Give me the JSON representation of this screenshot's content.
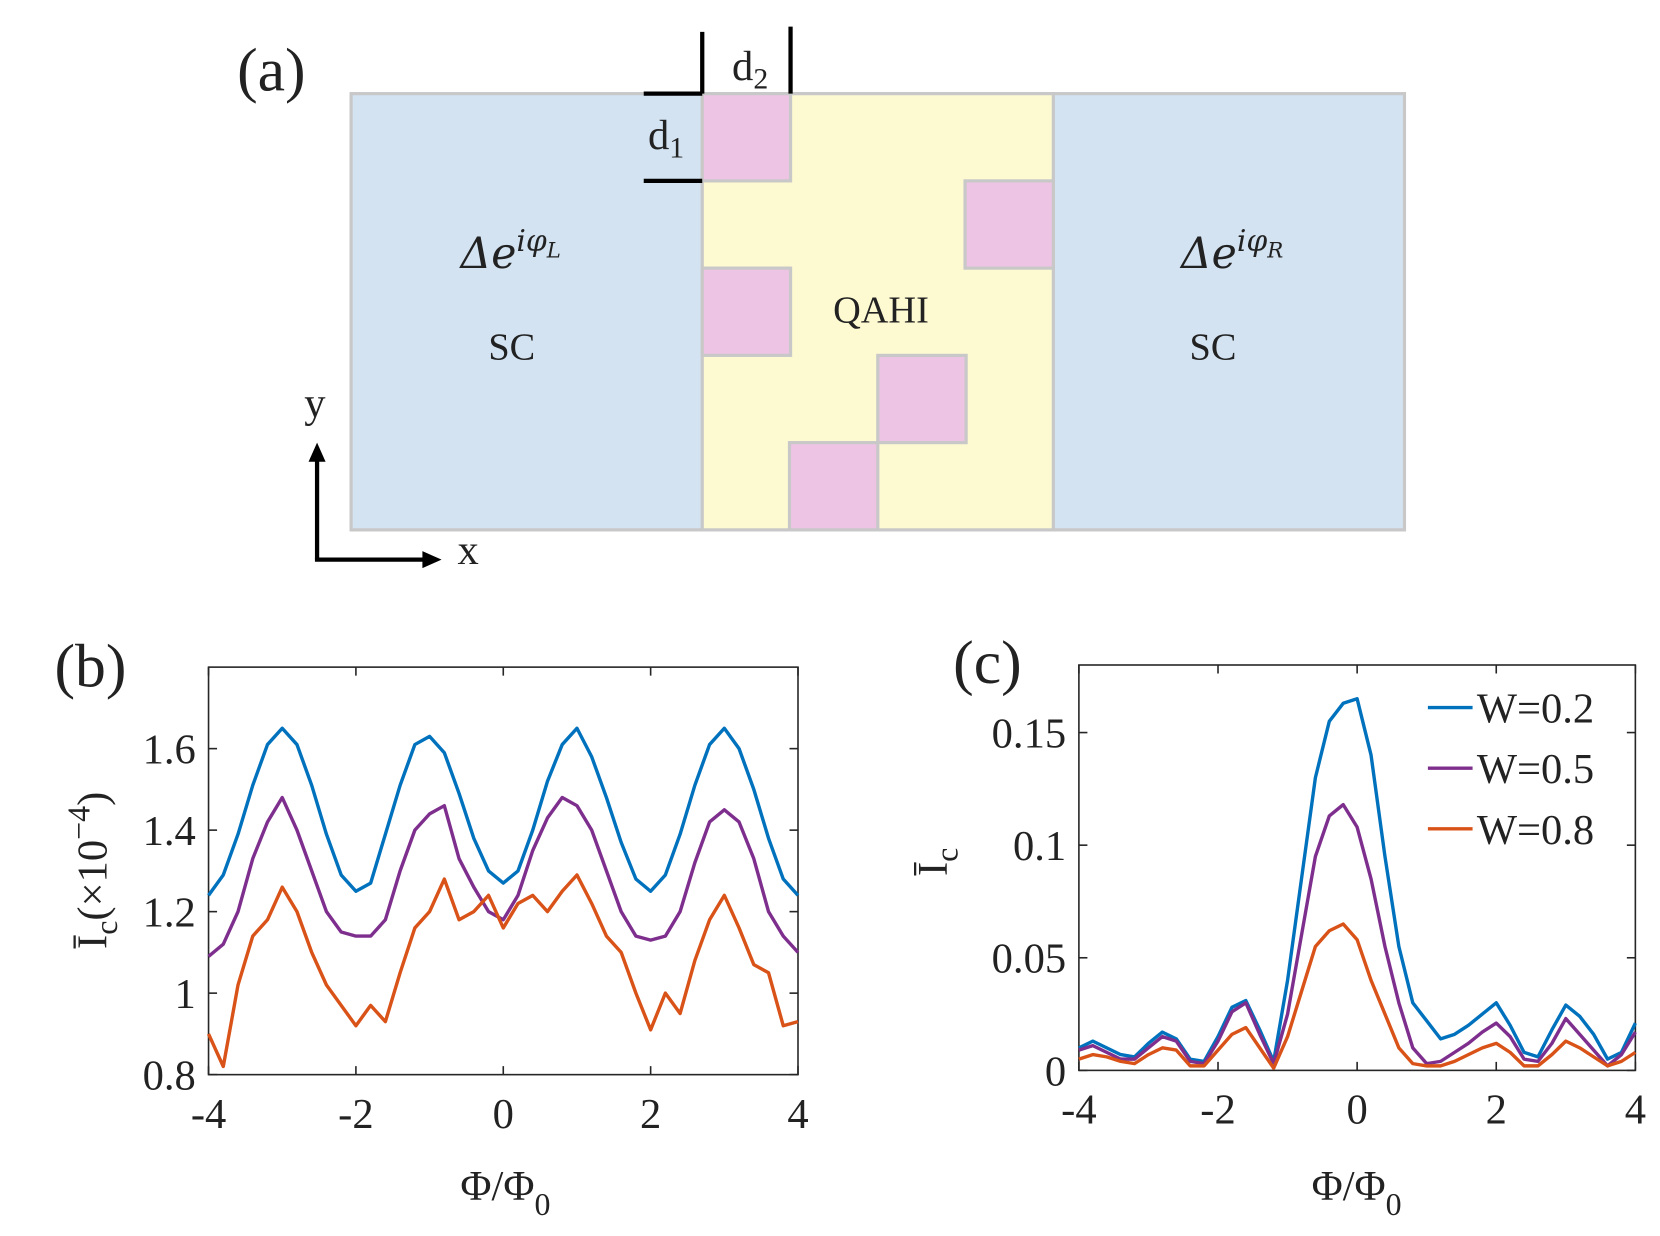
{
  "diagram": {
    "panel_label": "(a)",
    "d1": {
      "main": "d",
      "sub": "1"
    },
    "d2": {
      "main": "d",
      "sub": "2"
    },
    "left_phase": {
      "main": "Δe",
      "sup": "iφ",
      "subsup": "L"
    },
    "right_phase": {
      "main": "Δe",
      "sup": "iφ",
      "subsup": "R"
    },
    "left_label": "SC",
    "middle_label": "QAHI",
    "right_label": "SC",
    "y_axis": "y",
    "x_axis": "x"
  },
  "chart_data": [
    {
      "type": "line",
      "panel_label": "(b)",
      "xlabel": {
        "main": "Φ/Φ",
        "sub": "0"
      },
      "ylabel": {
        "main": "Ī",
        "sub": "c",
        "rest": "(×10",
        "sup": "−4",
        "end": ")"
      },
      "x": [
        -4,
        -3.8,
        -3.6,
        -3.4,
        -3.2,
        -3,
        -2.8,
        -2.6,
        -2.4,
        -2.2,
        -2,
        -1.8,
        -1.6,
        -1.4,
        -1.2,
        -1,
        -0.8,
        -0.6,
        -0.4,
        -0.2,
        0,
        0.2,
        0.4,
        0.6,
        0.8,
        1,
        1.2,
        1.4,
        1.6,
        1.8,
        2,
        2.2,
        2.4,
        2.6,
        2.8,
        3,
        3.2,
        3.4,
        3.6,
        3.8,
        4
      ],
      "xlim": [
        -4,
        4
      ],
      "xticks": [
        -4,
        -2,
        0,
        2,
        4
      ],
      "ylim": [
        0.8,
        1.8
      ],
      "yticks": [
        0.8,
        1,
        1.2,
        1.4,
        1.6
      ],
      "series": [
        {
          "color": "#0072BD",
          "values": [
            1.24,
            1.29,
            1.39,
            1.51,
            1.61,
            1.65,
            1.61,
            1.51,
            1.39,
            1.29,
            1.25,
            1.27,
            1.39,
            1.51,
            1.61,
            1.63,
            1.59,
            1.49,
            1.38,
            1.3,
            1.27,
            1.3,
            1.4,
            1.52,
            1.61,
            1.65,
            1.58,
            1.48,
            1.37,
            1.28,
            1.25,
            1.29,
            1.39,
            1.51,
            1.61,
            1.65,
            1.6,
            1.5,
            1.38,
            1.28,
            1.24
          ]
        },
        {
          "color": "#7E2F8E",
          "values": [
            1.09,
            1.12,
            1.2,
            1.33,
            1.42,
            1.48,
            1.4,
            1.3,
            1.2,
            1.15,
            1.14,
            1.14,
            1.18,
            1.3,
            1.4,
            1.44,
            1.46,
            1.33,
            1.26,
            1.2,
            1.18,
            1.24,
            1.35,
            1.43,
            1.48,
            1.46,
            1.4,
            1.3,
            1.2,
            1.14,
            1.13,
            1.14,
            1.2,
            1.32,
            1.42,
            1.45,
            1.42,
            1.33,
            1.2,
            1.14,
            1.1
          ]
        },
        {
          "color": "#D95319",
          "values": [
            0.9,
            0.82,
            1.02,
            1.14,
            1.18,
            1.26,
            1.2,
            1.1,
            1.02,
            0.97,
            0.92,
            0.97,
            0.93,
            1.05,
            1.16,
            1.2,
            1.28,
            1.18,
            1.2,
            1.24,
            1.16,
            1.22,
            1.24,
            1.2,
            1.25,
            1.29,
            1.22,
            1.14,
            1.1,
            1,
            0.91,
            1,
            0.95,
            1.08,
            1.18,
            1.24,
            1.16,
            1.07,
            1.05,
            0.92,
            0.93
          ]
        }
      ]
    },
    {
      "type": "line",
      "panel_label": "(c)",
      "xlabel": {
        "main": "Φ/Φ",
        "sub": "0"
      },
      "ylabel": {
        "main": "Ī",
        "sub": "c"
      },
      "x": [
        -4,
        -3.8,
        -3.6,
        -3.4,
        -3.2,
        -3,
        -2.8,
        -2.6,
        -2.4,
        -2.2,
        -2,
        -1.8,
        -1.6,
        -1.4,
        -1.2,
        -1,
        -0.8,
        -0.6,
        -0.4,
        -0.2,
        0,
        0.2,
        0.4,
        0.6,
        0.8,
        1,
        1.2,
        1.4,
        1.6,
        1.8,
        2,
        2.2,
        2.4,
        2.6,
        2.8,
        3,
        3.2,
        3.4,
        3.6,
        3.8,
        4
      ],
      "xlim": [
        -4,
        4
      ],
      "xticks": [
        -4,
        -2,
        0,
        2,
        4
      ],
      "ylim": [
        0,
        0.18
      ],
      "yticks": [
        0,
        0.05,
        0.1,
        0.15
      ],
      "legend": "upper right",
      "series": [
        {
          "name": "W=0.2",
          "color": "#0072BD",
          "values": [
            0.01,
            0.013,
            0.01,
            0.007,
            0.006,
            0.012,
            0.017,
            0.014,
            0.005,
            0.004,
            0.015,
            0.028,
            0.031,
            0.018,
            0.004,
            0.04,
            0.085,
            0.13,
            0.155,
            0.163,
            0.165,
            0.14,
            0.095,
            0.055,
            0.03,
            0.022,
            0.014,
            0.016,
            0.02,
            0.025,
            0.03,
            0.02,
            0.008,
            0.006,
            0.018,
            0.029,
            0.024,
            0.016,
            0.005,
            0.008,
            0.021
          ]
        },
        {
          "name": "W=0.5",
          "color": "#7E2F8E",
          "values": [
            0.009,
            0.011,
            0.008,
            0.005,
            0.005,
            0.01,
            0.015,
            0.013,
            0.004,
            0.003,
            0.013,
            0.026,
            0.03,
            0.016,
            0.003,
            0.025,
            0.06,
            0.095,
            0.113,
            0.118,
            0.108,
            0.085,
            0.055,
            0.03,
            0.01,
            0.003,
            0.004,
            0.008,
            0.012,
            0.017,
            0.021,
            0.015,
            0.005,
            0.004,
            0.012,
            0.023,
            0.016,
            0.009,
            0.002,
            0.007,
            0.017
          ]
        },
        {
          "name": "W=0.8",
          "color": "#D95319",
          "values": [
            0.005,
            0.007,
            0.006,
            0.004,
            0.003,
            0.007,
            0.01,
            0.009,
            0.002,
            0.002,
            0.009,
            0.016,
            0.019,
            0.01,
            0.001,
            0.015,
            0.035,
            0.055,
            0.062,
            0.065,
            0.058,
            0.04,
            0.025,
            0.01,
            0.003,
            0.002,
            0.002,
            0.004,
            0.007,
            0.01,
            0.012,
            0.008,
            0.002,
            0.002,
            0.007,
            0.013,
            0.01,
            0.006,
            0.002,
            0.004,
            0.008
          ]
        }
      ]
    }
  ]
}
